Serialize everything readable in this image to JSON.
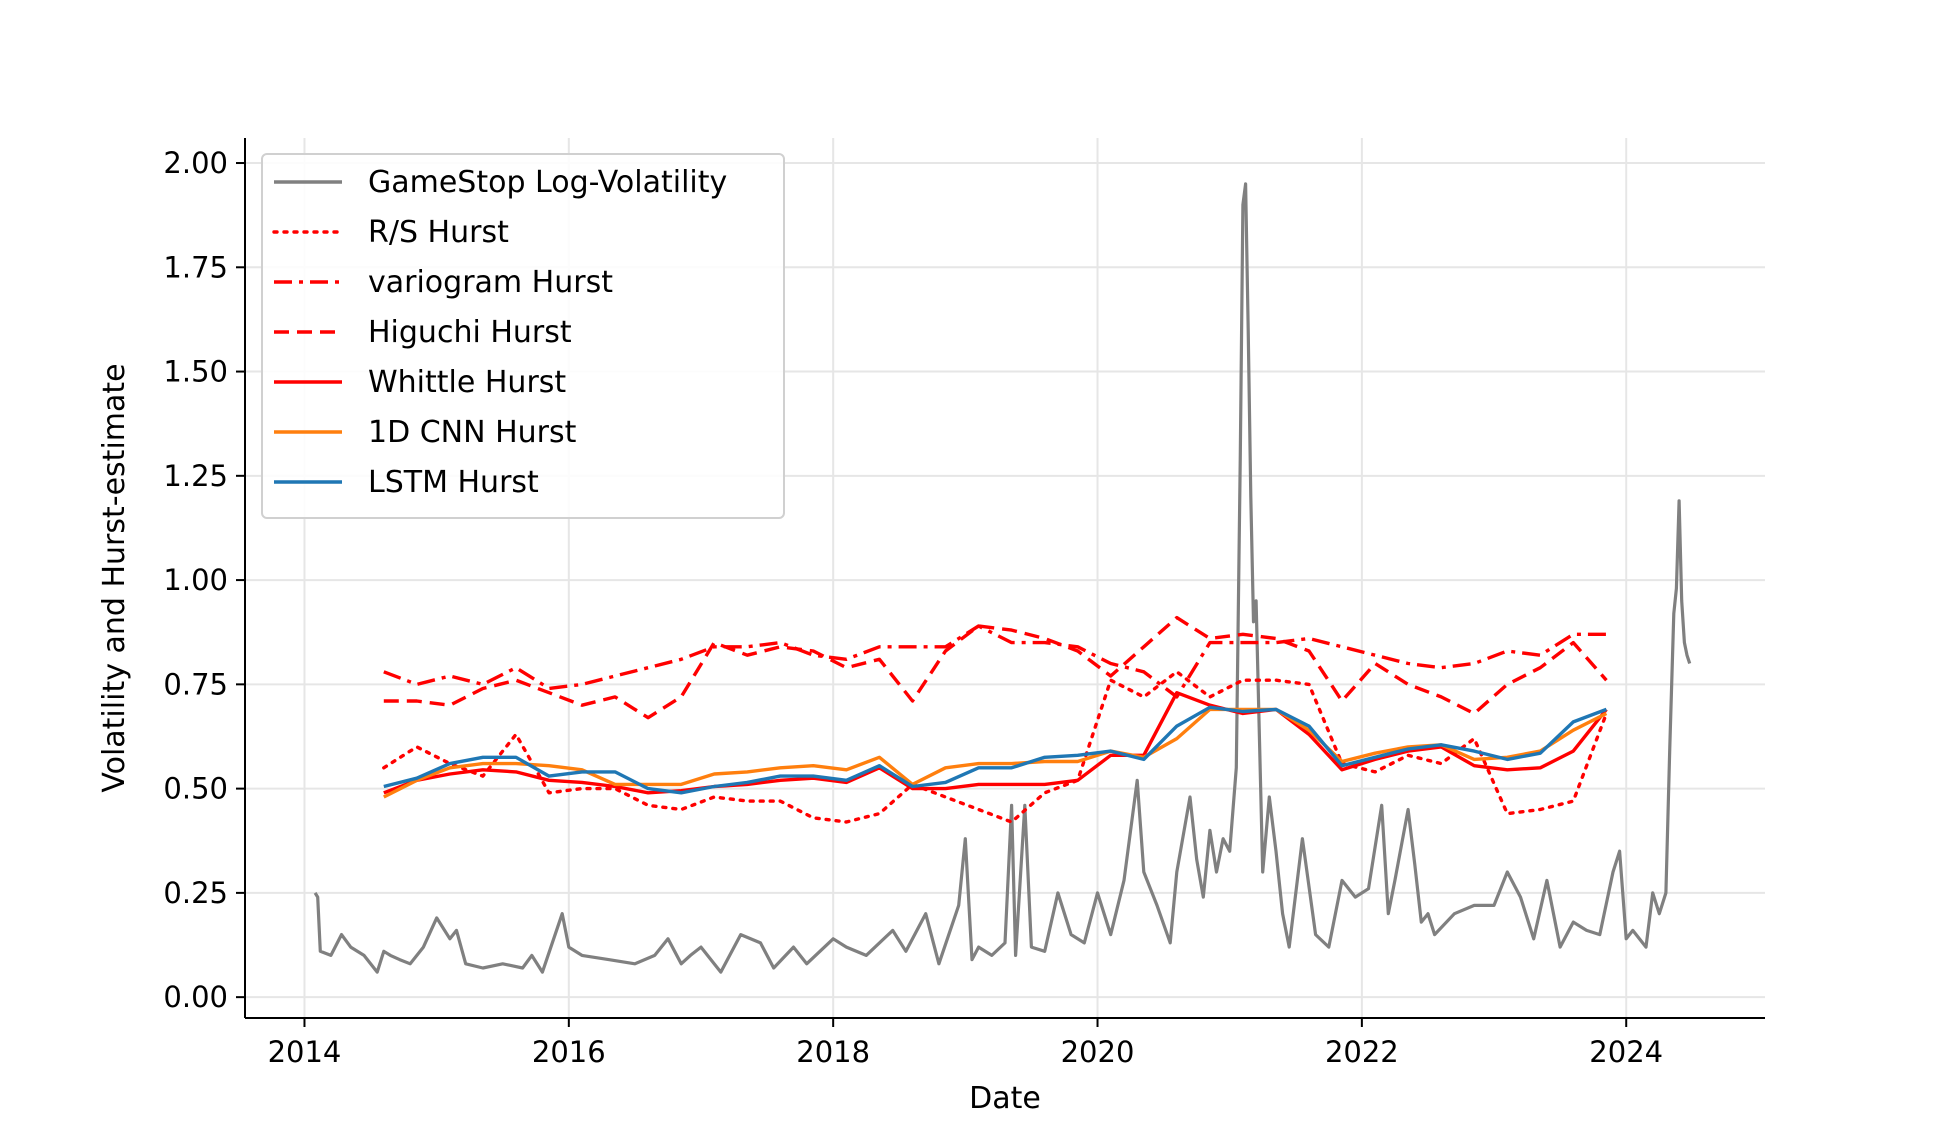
{
  "chart_data": {
    "type": "line",
    "title": "",
    "xlabel": "Date",
    "ylabel": "Volatility and Hurst-estimate",
    "xlim": [
      2013.55,
      2025.05
    ],
    "ylim": [
      -0.05,
      2.06
    ],
    "xticks": [
      2014,
      2016,
      2018,
      2020,
      2022,
      2024
    ],
    "xtick_labels": [
      "2014",
      "2016",
      "2018",
      "2020",
      "2022",
      "2024"
    ],
    "yticks": [
      0.0,
      0.25,
      0.5,
      0.75,
      1.0,
      1.25,
      1.5,
      1.75,
      2.0
    ],
    "ytick_labels": [
      "0.00",
      "0.25",
      "0.50",
      "0.75",
      "1.00",
      "1.25",
      "1.50",
      "1.75",
      "2.00"
    ],
    "grid": true,
    "legend_position": "upper-left",
    "series": [
      {
        "name": "GameStop Log-Volatility",
        "color": "#808080",
        "style": "solid",
        "x": [
          2014.08,
          2014.1,
          2014.12,
          2014.2,
          2014.28,
          2014.35,
          2014.45,
          2014.55,
          2014.6,
          2014.65,
          2014.72,
          2014.8,
          2014.9,
          2015.0,
          2015.1,
          2015.15,
          2015.22,
          2015.35,
          2015.5,
          2015.65,
          2015.72,
          2015.8,
          2015.95,
          2016.0,
          2016.1,
          2016.3,
          2016.5,
          2016.65,
          2016.75,
          2016.85,
          2016.92,
          2017.0,
          2017.15,
          2017.3,
          2017.45,
          2017.55,
          2017.7,
          2017.8,
          2018.0,
          2018.1,
          2018.25,
          2018.45,
          2018.55,
          2018.7,
          2018.8,
          2018.95,
          2019.0,
          2019.05,
          2019.1,
          2019.2,
          2019.3,
          2019.35,
          2019.38,
          2019.45,
          2019.5,
          2019.6,
          2019.7,
          2019.8,
          2019.9,
          2020.0,
          2020.1,
          2020.2,
          2020.3,
          2020.35,
          2020.45,
          2020.55,
          2020.6,
          2020.7,
          2020.75,
          2020.8,
          2020.85,
          2020.9,
          2020.95,
          2021.0,
          2021.05,
          2021.08,
          2021.1,
          2021.12,
          2021.14,
          2021.16,
          2021.18,
          2021.2,
          2021.25,
          2021.3,
          2021.35,
          2021.4,
          2021.45,
          2021.55,
          2021.65,
          2021.75,
          2021.85,
          2021.95,
          2022.05,
          2022.15,
          2022.2,
          2022.25,
          2022.35,
          2022.4,
          2022.45,
          2022.5,
          2022.55,
          2022.7,
          2022.85,
          2023.0,
          2023.1,
          2023.2,
          2023.3,
          2023.4,
          2023.5,
          2023.6,
          2023.7,
          2023.8,
          2023.9,
          2023.95,
          2024.0,
          2024.05,
          2024.1,
          2024.15,
          2024.2,
          2024.25,
          2024.3,
          2024.33,
          2024.36,
          2024.38,
          2024.4,
          2024.42,
          2024.44,
          2024.46,
          2024.48
        ],
        "y": [
          0.25,
          0.24,
          0.11,
          0.1,
          0.15,
          0.12,
          0.1,
          0.06,
          0.11,
          0.1,
          0.09,
          0.08,
          0.12,
          0.19,
          0.14,
          0.16,
          0.08,
          0.07,
          0.08,
          0.07,
          0.1,
          0.06,
          0.2,
          0.12,
          0.1,
          0.09,
          0.08,
          0.1,
          0.14,
          0.08,
          0.1,
          0.12,
          0.06,
          0.15,
          0.13,
          0.07,
          0.12,
          0.08,
          0.14,
          0.12,
          0.1,
          0.16,
          0.11,
          0.2,
          0.08,
          0.22,
          0.38,
          0.09,
          0.12,
          0.1,
          0.13,
          0.46,
          0.1,
          0.46,
          0.12,
          0.11,
          0.25,
          0.15,
          0.13,
          0.25,
          0.15,
          0.28,
          0.52,
          0.3,
          0.22,
          0.13,
          0.3,
          0.48,
          0.33,
          0.24,
          0.4,
          0.3,
          0.38,
          0.35,
          0.55,
          1.3,
          1.9,
          1.95,
          1.6,
          1.2,
          0.9,
          0.95,
          0.3,
          0.48,
          0.35,
          0.2,
          0.12,
          0.38,
          0.15,
          0.12,
          0.28,
          0.24,
          0.26,
          0.46,
          0.2,
          0.28,
          0.45,
          0.32,
          0.18,
          0.2,
          0.15,
          0.2,
          0.22,
          0.22,
          0.3,
          0.24,
          0.14,
          0.28,
          0.12,
          0.18,
          0.16,
          0.15,
          0.3,
          0.35,
          0.14,
          0.16,
          0.14,
          0.12,
          0.25,
          0.2,
          0.25,
          0.6,
          0.92,
          0.98,
          1.19,
          0.95,
          0.85,
          0.82,
          0.8
        ]
      },
      {
        "name": "R/S Hurst",
        "color": "#ff0000",
        "style": "dotted",
        "x": [
          2014.6,
          2014.85,
          2015.1,
          2015.35,
          2015.6,
          2015.85,
          2016.1,
          2016.35,
          2016.6,
          2016.85,
          2017.1,
          2017.35,
          2017.6,
          2017.85,
          2018.1,
          2018.35,
          2018.6,
          2018.85,
          2019.1,
          2019.35,
          2019.6,
          2019.85,
          2020.1,
          2020.35,
          2020.6,
          2020.85,
          2021.1,
          2021.35,
          2021.6,
          2021.85,
          2022.1,
          2022.35,
          2022.6,
          2022.85,
          2023.1,
          2023.35,
          2023.6,
          2023.85
        ],
        "y": [
          0.55,
          0.6,
          0.56,
          0.53,
          0.63,
          0.49,
          0.5,
          0.5,
          0.46,
          0.45,
          0.48,
          0.47,
          0.47,
          0.43,
          0.42,
          0.44,
          0.51,
          0.48,
          0.45,
          0.42,
          0.49,
          0.52,
          0.76,
          0.72,
          0.78,
          0.72,
          0.76,
          0.76,
          0.75,
          0.56,
          0.54,
          0.58,
          0.56,
          0.62,
          0.44,
          0.45,
          0.47,
          0.68
        ]
      },
      {
        "name": "variogram Hurst",
        "color": "#ff0000",
        "style": "dashdot",
        "x": [
          2014.6,
          2014.85,
          2015.1,
          2015.35,
          2015.6,
          2015.85,
          2016.1,
          2016.35,
          2016.6,
          2016.85,
          2017.1,
          2017.35,
          2017.6,
          2017.85,
          2018.1,
          2018.35,
          2018.6,
          2018.85,
          2019.1,
          2019.35,
          2019.6,
          2019.85,
          2020.1,
          2020.35,
          2020.6,
          2020.85,
          2021.1,
          2021.35,
          2021.6,
          2021.85,
          2022.1,
          2022.35,
          2022.6,
          2022.85,
          2023.1,
          2023.35,
          2023.6,
          2023.85
        ],
        "y": [
          0.78,
          0.75,
          0.77,
          0.75,
          0.79,
          0.74,
          0.75,
          0.77,
          0.79,
          0.81,
          0.84,
          0.84,
          0.85,
          0.82,
          0.81,
          0.84,
          0.84,
          0.84,
          0.89,
          0.85,
          0.85,
          0.84,
          0.8,
          0.78,
          0.72,
          0.85,
          0.85,
          0.85,
          0.86,
          0.84,
          0.82,
          0.8,
          0.79,
          0.8,
          0.83,
          0.82,
          0.87,
          0.87
        ]
      },
      {
        "name": "Higuchi Hurst",
        "color": "#ff0000",
        "style": "dashed",
        "x": [
          2014.6,
          2014.85,
          2015.1,
          2015.35,
          2015.6,
          2015.85,
          2016.1,
          2016.35,
          2016.6,
          2016.85,
          2017.1,
          2017.35,
          2017.6,
          2017.85,
          2018.1,
          2018.35,
          2018.6,
          2018.85,
          2019.1,
          2019.35,
          2019.6,
          2019.85,
          2020.1,
          2020.35,
          2020.6,
          2020.85,
          2021.1,
          2021.35,
          2021.6,
          2021.85,
          2022.1,
          2022.35,
          2022.6,
          2022.85,
          2023.1,
          2023.35,
          2023.6,
          2023.85
        ],
        "y": [
          0.71,
          0.71,
          0.7,
          0.74,
          0.76,
          0.73,
          0.7,
          0.72,
          0.67,
          0.72,
          0.85,
          0.82,
          0.84,
          0.83,
          0.79,
          0.81,
          0.71,
          0.83,
          0.89,
          0.88,
          0.86,
          0.83,
          0.77,
          0.84,
          0.91,
          0.86,
          0.87,
          0.86,
          0.83,
          0.71,
          0.8,
          0.75,
          0.72,
          0.68,
          0.75,
          0.79,
          0.85,
          0.76
        ]
      },
      {
        "name": "Whittle Hurst",
        "color": "#ff0000",
        "style": "solid",
        "x": [
          2014.6,
          2014.85,
          2015.1,
          2015.35,
          2015.6,
          2015.85,
          2016.1,
          2016.35,
          2016.6,
          2016.85,
          2017.1,
          2017.35,
          2017.6,
          2017.85,
          2018.1,
          2018.35,
          2018.6,
          2018.85,
          2019.1,
          2019.35,
          2019.6,
          2019.85,
          2020.1,
          2020.35,
          2020.6,
          2020.85,
          2021.1,
          2021.35,
          2021.6,
          2021.85,
          2022.1,
          2022.35,
          2022.6,
          2022.85,
          2023.1,
          2023.35,
          2023.6,
          2023.85
        ],
        "y": [
          0.49,
          0.52,
          0.535,
          0.545,
          0.54,
          0.52,
          0.515,
          0.505,
          0.49,
          0.495,
          0.505,
          0.51,
          0.52,
          0.525,
          0.515,
          0.55,
          0.5,
          0.5,
          0.51,
          0.51,
          0.51,
          0.52,
          0.58,
          0.58,
          0.73,
          0.7,
          0.68,
          0.69,
          0.63,
          0.545,
          0.57,
          0.59,
          0.6,
          0.555,
          0.545,
          0.55,
          0.59,
          0.69
        ]
      },
      {
        "name": "1D CNN Hurst",
        "color": "#ff7f0e",
        "style": "solid",
        "x": [
          2014.6,
          2014.85,
          2015.1,
          2015.35,
          2015.6,
          2015.85,
          2016.1,
          2016.35,
          2016.6,
          2016.85,
          2017.1,
          2017.35,
          2017.6,
          2017.85,
          2018.1,
          2018.35,
          2018.6,
          2018.85,
          2019.1,
          2019.35,
          2019.6,
          2019.85,
          2020.1,
          2020.35,
          2020.6,
          2020.85,
          2021.1,
          2021.35,
          2021.6,
          2021.85,
          2022.1,
          2022.35,
          2022.6,
          2022.85,
          2023.1,
          2023.35,
          2023.6,
          2023.85
        ],
        "y": [
          0.48,
          0.52,
          0.55,
          0.56,
          0.56,
          0.555,
          0.545,
          0.51,
          0.51,
          0.51,
          0.535,
          0.54,
          0.55,
          0.555,
          0.545,
          0.575,
          0.51,
          0.55,
          0.56,
          0.56,
          0.565,
          0.565,
          0.59,
          0.575,
          0.62,
          0.69,
          0.69,
          0.69,
          0.64,
          0.565,
          0.585,
          0.6,
          0.605,
          0.57,
          0.575,
          0.59,
          0.64,
          0.68
        ]
      },
      {
        "name": "LSTM Hurst",
        "color": "#1f77b4",
        "style": "solid",
        "x": [
          2014.6,
          2014.85,
          2015.1,
          2015.35,
          2015.6,
          2015.85,
          2016.1,
          2016.35,
          2016.6,
          2016.85,
          2017.1,
          2017.35,
          2017.6,
          2017.85,
          2018.1,
          2018.35,
          2018.6,
          2018.85,
          2019.1,
          2019.35,
          2019.6,
          2019.85,
          2020.1,
          2020.35,
          2020.6,
          2020.85,
          2021.1,
          2021.35,
          2021.6,
          2021.85,
          2022.1,
          2022.35,
          2022.6,
          2022.85,
          2023.1,
          2023.35,
          2023.6,
          2023.85
        ],
        "y": [
          0.505,
          0.525,
          0.56,
          0.575,
          0.575,
          0.53,
          0.54,
          0.54,
          0.5,
          0.49,
          0.505,
          0.515,
          0.53,
          0.53,
          0.52,
          0.555,
          0.505,
          0.515,
          0.55,
          0.55,
          0.575,
          0.58,
          0.59,
          0.57,
          0.65,
          0.695,
          0.685,
          0.69,
          0.65,
          0.555,
          0.575,
          0.595,
          0.605,
          0.59,
          0.57,
          0.585,
          0.66,
          0.69
        ]
      }
    ]
  }
}
